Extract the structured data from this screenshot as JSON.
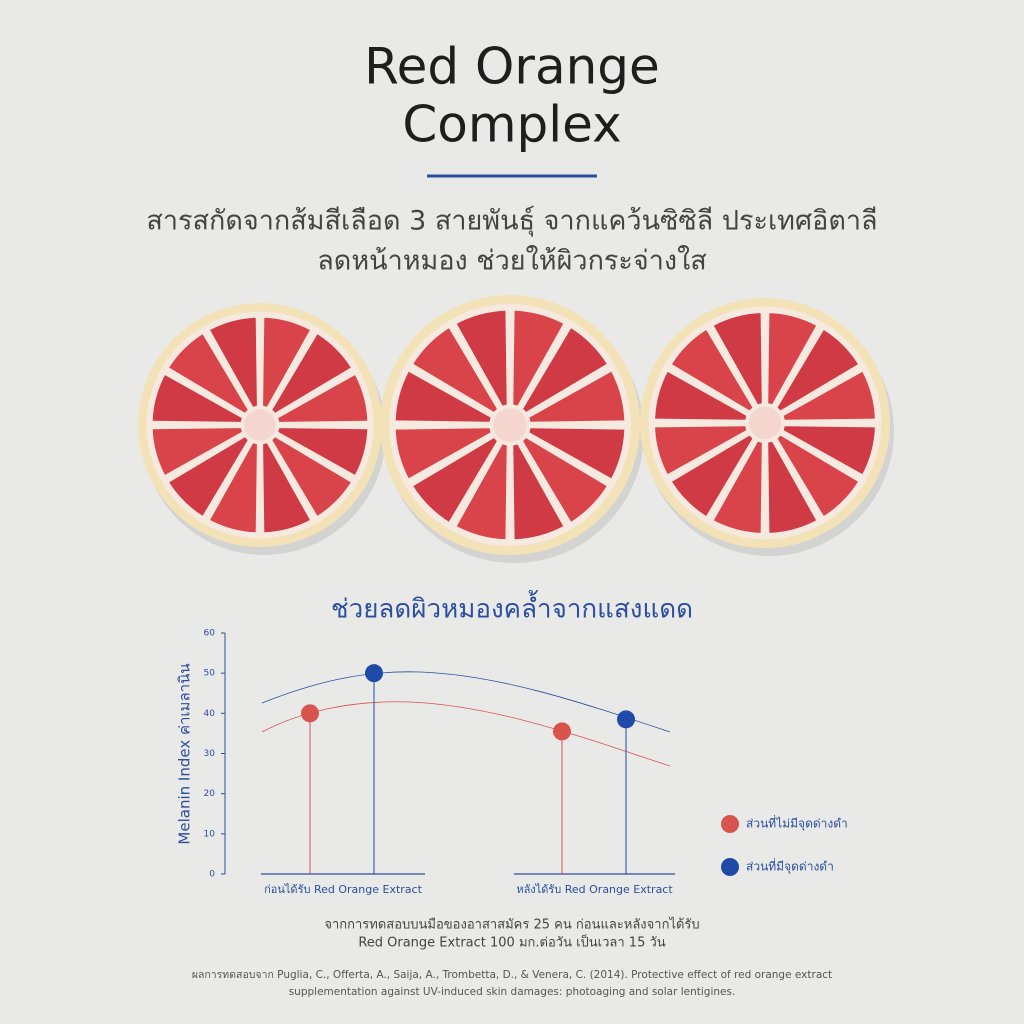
{
  "header": {
    "title_lines": [
      "Red Orange",
      "Complex"
    ],
    "subtitle_lines": [
      "สารสกัดจากส้มสีเลือด 3 สายพันธุ์ จากแคว้นซิซิลี ประเทศอิตาลี",
      "ลดหน้าหมอง ช่วยให้ผิวกระจ่างใส"
    ]
  },
  "chart_data": {
    "type": "lollipop",
    "title": "ช่วยลดผิวหมองคล้ำจากแสงแดด",
    "y_label": "Melanin Index ค่าเมลานิน",
    "categories": [
      "ก่อนได้รับ Red Orange Extract",
      "หลังได้รับ Red Orange Extract"
    ],
    "series": [
      {
        "name": "ส่วนที่ไม่มีจุดด่างดำ",
        "color": "#d9534f",
        "values": [
          40,
          35.5
        ]
      },
      {
        "name": "ส่วนที่มีจุดด่างดำ",
        "color": "#1f4aa8",
        "values": [
          50,
          38.5
        ]
      }
    ],
    "ylim": [
      0,
      60
    ],
    "yticks": [
      0,
      10,
      20,
      30,
      40,
      50,
      60
    ],
    "legend": "right"
  },
  "footnote_lines": [
    "จากการทดสอบบนมือของอาสาสมัคร 25 คน ก่อนและหลังจากได้รับ",
    "Red Orange Extract 100 มก.ต่อวัน เป็นเวลา 15 วัน"
  ],
  "reference_lines": [
    "ผลการทดสอบจาก Puglia, C., Offerta, A., Saija, A., Trombetta, D., & Venera, C. (2014). Protective effect of red orange extract",
    "supplementation against UV-induced skin damages: photoaging and solar lentigines."
  ]
}
